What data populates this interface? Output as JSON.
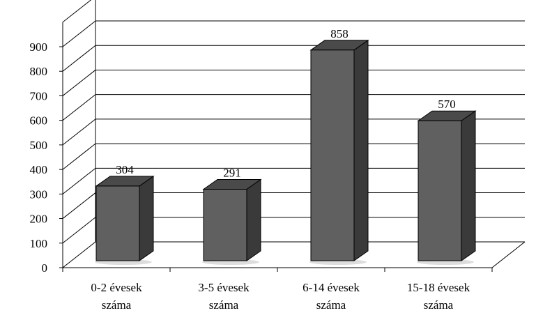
{
  "chart_data": {
    "type": "bar",
    "title": "",
    "xlabel": "",
    "ylabel": "",
    "ylim": [
      0,
      900
    ],
    "yticks": [
      0,
      100,
      200,
      300,
      400,
      500,
      600,
      700,
      800,
      900
    ],
    "categories": [
      [
        "0-2 évesek",
        "száma"
      ],
      [
        "3-5 évesek",
        "száma"
      ],
      [
        "6-14 évesek",
        "száma"
      ],
      [
        "15-18 évesek",
        "száma"
      ]
    ],
    "values": [
      304,
      291,
      858,
      570
    ],
    "data_labels": [
      "304",
      "291",
      "858",
      "570"
    ],
    "grid": true,
    "legend": "none",
    "style": "3d-column",
    "colors": {
      "bar_front": "#606060",
      "bar_side": "#3a3a3a",
      "bar_top": "#4a4a4a",
      "grid": "#000000"
    }
  }
}
